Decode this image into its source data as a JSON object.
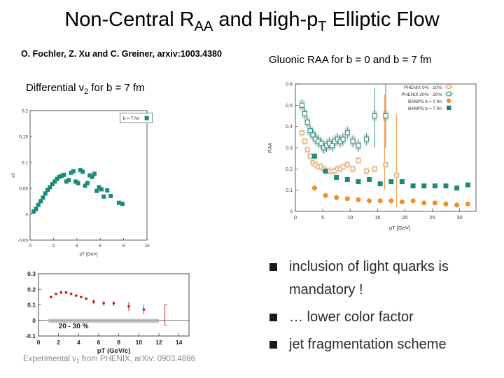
{
  "slide": {
    "title_main": "Non-Central R",
    "title_sub": "AA",
    "title_mid": " and High-p",
    "title_sub2": "T",
    "title_end": " Elliptic Flow",
    "authors": "O. Fochler, Z. Xu and C. Greiner, arxiv:1003.4380",
    "gluonic_caption": "Gluonic RAA for b = 0 and b = 7 fm",
    "diff_caption_pre": "Differential v",
    "diff_caption_sub": "2",
    "diff_caption_post": " for b = 7 fm",
    "exp_caption_pre": "Experimental v",
    "exp_caption_sub": "2",
    "exp_caption_post": " from PHENIX, arXiv: 0903.4886",
    "bullets": [
      "inclusion of light quarks is mandatory !",
      "… lower color factor",
      "jet fragmentation scheme"
    ],
    "colors": {
      "orange": "#f28c28",
      "teal": "#1b8a7a",
      "bamps_v2": "#1b8a7a",
      "red": "#cc1111",
      "band": "#aaaaaa"
    }
  },
  "chart_data": [
    {
      "id": "v2-bamps",
      "type": "scatter",
      "title": "",
      "xlabel": "pT [GeV]",
      "ylabel": "v2",
      "xlim": [
        0,
        10
      ],
      "ylim": [
        -0.05,
        0.2
      ],
      "xticks": [
        "0",
        "2",
        "4",
        "6",
        "8",
        "10"
      ],
      "yticks": [
        "-0.05",
        "0",
        "0.05",
        "0.1",
        "0.15",
        "0.2"
      ],
      "legend": [
        "b = 7 fm"
      ],
      "series": [
        {
          "name": "b = 7 fm",
          "x": [
            0.3,
            0.5,
            0.7,
            0.9,
            1.1,
            1.3,
            1.5,
            1.7,
            1.9,
            2.1,
            2.3,
            2.5,
            2.7,
            2.9,
            3.1,
            3.3,
            3.5,
            3.7,
            3.9,
            4.1,
            4.3,
            4.5,
            4.7,
            4.9,
            5.1,
            5.3,
            5.5,
            5.7,
            5.9,
            6.1,
            6.3,
            6.6,
            6.9,
            7.6,
            7.9
          ],
          "y": [
            0.005,
            0.01,
            0.018,
            0.025,
            0.032,
            0.04,
            0.047,
            0.052,
            0.058,
            0.063,
            0.068,
            0.072,
            0.074,
            0.076,
            0.063,
            0.066,
            0.08,
            0.083,
            0.063,
            0.06,
            0.085,
            0.082,
            0.055,
            0.06,
            0.075,
            0.072,
            0.078,
            0.045,
            0.052,
            0.048,
            0.034,
            0.046,
            0.035,
            0.022,
            0.02
          ]
        }
      ]
    },
    {
      "id": "raa-gluonic",
      "type": "scatter",
      "title": "",
      "xlabel": "pT [GeV]",
      "ylabel": "RAA",
      "xlim": [
        0,
        33
      ],
      "ylim": [
        0,
        0.6
      ],
      "xticks": [
        "0",
        "5",
        "10",
        "15",
        "20",
        "25",
        "30"
      ],
      "yticks": [
        "0",
        "0.1",
        "0.2",
        "0.3",
        "0.4",
        "0.5",
        "0.6"
      ],
      "legend": [
        "PHENIX 0% - 10%",
        "PHENIX 20% - 30%",
        "BAMPS b = 0 fm",
        "BAMPS b = 7 fm"
      ],
      "series": [
        {
          "name": "PHENIX 0% - 10%",
          "x": [
            1.2,
            1.7,
            2.2,
            2.7,
            3.2,
            3.7,
            4.2,
            4.7,
            5.2,
            5.7,
            6.2,
            6.7,
            7.2,
            7.7,
            8.2,
            8.7,
            9.5,
            10.5,
            11.5,
            13,
            14.5,
            16.5,
            18.5
          ],
          "y": [
            0.37,
            0.33,
            0.29,
            0.26,
            0.23,
            0.22,
            0.21,
            0.21,
            0.2,
            0.19,
            0.19,
            0.19,
            0.19,
            0.2,
            0.2,
            0.21,
            0.22,
            0.2,
            0.24,
            0.19,
            0.2,
            0.22,
            0.17
          ]
        },
        {
          "name": "PHENIX 20% - 30%",
          "x": [
            1.2,
            1.7,
            2.2,
            2.7,
            3.2,
            3.7,
            4.2,
            4.7,
            5.2,
            5.7,
            6.2,
            6.7,
            7.2,
            7.7,
            8.2,
            8.7,
            9.5,
            10.5,
            11.5,
            13,
            14.5,
            16.5
          ],
          "y": [
            0.5,
            0.46,
            0.42,
            0.38,
            0.36,
            0.34,
            0.33,
            0.32,
            0.3,
            0.31,
            0.32,
            0.31,
            0.33,
            0.34,
            0.33,
            0.34,
            0.37,
            0.33,
            0.31,
            0.34,
            0.45,
            0.45
          ]
        },
        {
          "name": "BAMPS b = 0 fm",
          "x": [
            3.5,
            5.5,
            7.5,
            9.5,
            11.5,
            13.5,
            15.5,
            17.5,
            19.5,
            21.5,
            23.5,
            25.5,
            27.5,
            29.5,
            31.5
          ],
          "y": [
            0.11,
            0.075,
            0.065,
            0.06,
            0.055,
            0.05,
            0.05,
            0.05,
            0.045,
            0.05,
            0.04,
            0.04,
            0.035,
            0.03,
            0.035
          ]
        },
        {
          "name": "BAMPS b = 7 fm",
          "x": [
            3.5,
            5.5,
            7.5,
            9.5,
            11.5,
            13.5,
            15.5,
            17.5,
            19.5,
            21.5,
            23.5,
            25.5,
            27.5,
            29.5,
            31.5
          ],
          "y": [
            0.26,
            0.19,
            0.16,
            0.15,
            0.14,
            0.15,
            0.13,
            0.14,
            0.14,
            0.12,
            0.12,
            0.12,
            0.12,
            0.11,
            0.125
          ]
        }
      ]
    },
    {
      "id": "v2-phenix",
      "type": "scatter",
      "title": "",
      "xlabel": "pT (GeV/c)",
      "ylabel": "",
      "xlim": [
        0,
        15
      ],
      "ylim": [
        -0.1,
        0.3
      ],
      "xticks": [
        "0",
        "2",
        "4",
        "6",
        "8",
        "10",
        "12",
        "14"
      ],
      "yticks": [
        "-0.1",
        "0",
        "0.1",
        "0.2",
        "0.3"
      ],
      "annotation": "20 - 30 %",
      "series": [
        {
          "name": "PHENIX 20% - 30%",
          "x": [
            1.25,
            1.75,
            2.25,
            2.75,
            3.25,
            3.75,
            4.25,
            4.75,
            5.5,
            6.5,
            7.5,
            9,
            10.5
          ],
          "y": [
            0.15,
            0.17,
            0.18,
            0.18,
            0.17,
            0.16,
            0.15,
            0.14,
            0.12,
            0.11,
            0.11,
            0.09,
            0.07
          ]
        }
      ]
    }
  ]
}
